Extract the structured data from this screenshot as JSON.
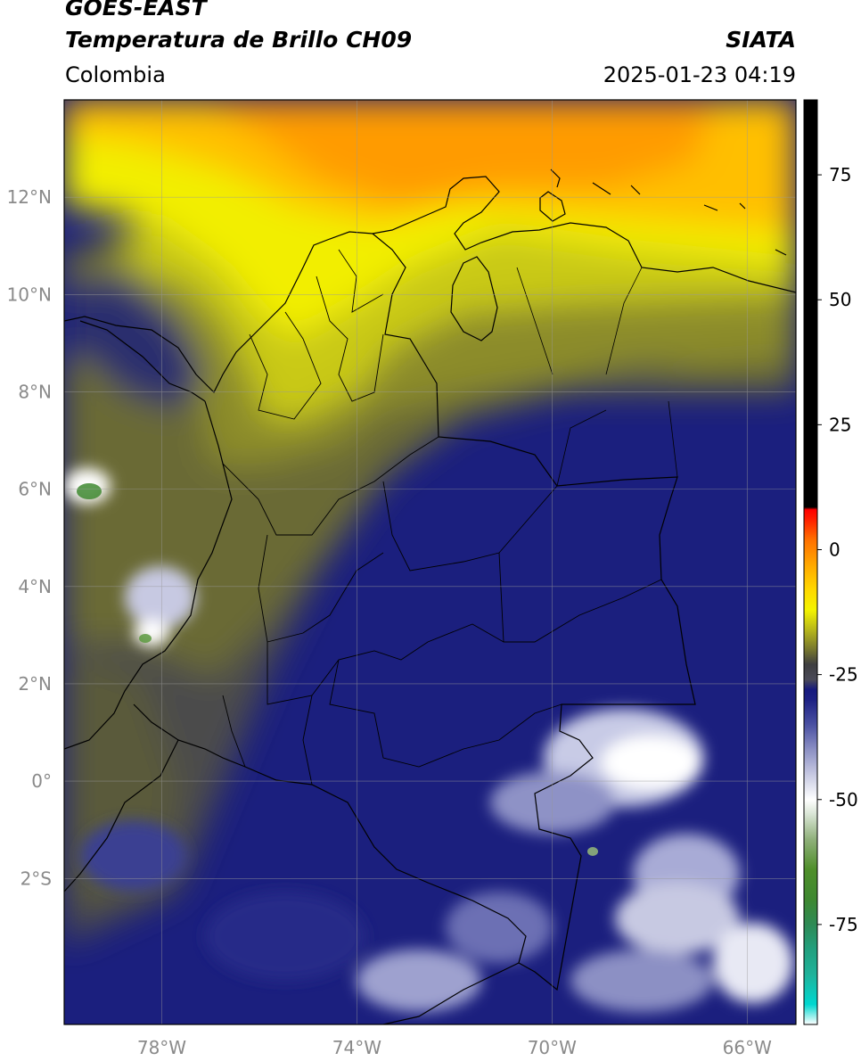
{
  "header": {
    "satellite": "GOES-EAST",
    "product": "Temperatura de Brillo CH09",
    "agency": "SIATA",
    "region": "Colombia",
    "timestamp": "2025-01-23 04:19"
  },
  "map": {
    "lon_range": [
      -80.0,
      -65.0
    ],
    "lat_range": [
      -5.0,
      14.0
    ],
    "lat_ticks": [
      {
        "value": 12,
        "label": "12°N"
      },
      {
        "value": 10,
        "label": "10°N"
      },
      {
        "value": 8,
        "label": "8°N"
      },
      {
        "value": 6,
        "label": "6°N"
      },
      {
        "value": 4,
        "label": "4°N"
      },
      {
        "value": 2,
        "label": "2°N"
      },
      {
        "value": 0,
        "label": "0°"
      },
      {
        "value": -2,
        "label": "2°S"
      }
    ],
    "lon_ticks": [
      {
        "value": -78,
        "label": "78°W"
      },
      {
        "value": -74,
        "label": "74°W"
      },
      {
        "value": -70,
        "label": "70°W"
      },
      {
        "value": -66,
        "label": "66°W"
      }
    ],
    "grid": true
  },
  "colorbar": {
    "range": [
      -95,
      90
    ],
    "ticks": [
      {
        "value": 75,
        "label": "75"
      },
      {
        "value": 50,
        "label": "50"
      },
      {
        "value": 25,
        "label": "25"
      },
      {
        "value": 0,
        "label": "0"
      },
      {
        "value": -25,
        "label": "-25"
      },
      {
        "value": -50,
        "label": "-50"
      },
      {
        "value": -75,
        "label": "-75"
      }
    ],
    "stops": [
      {
        "value": -95,
        "color": "#ffffff"
      },
      {
        "value": -91,
        "color": "#00d7d0"
      },
      {
        "value": -85,
        "color": "#1fb29a"
      },
      {
        "value": -80,
        "color": "#22a07e"
      },
      {
        "value": -75,
        "color": "#2e8a55"
      },
      {
        "value": -70,
        "color": "#3e8830"
      },
      {
        "value": -64,
        "color": "#4f8f2a"
      },
      {
        "value": -58,
        "color": "#8fb07a"
      },
      {
        "value": -53,
        "color": "#d8e4d4"
      },
      {
        "value": -50,
        "color": "#ffffff"
      },
      {
        "value": -45,
        "color": "#c7c9e2"
      },
      {
        "value": -40,
        "color": "#8c90c4"
      },
      {
        "value": -35,
        "color": "#4a50a2"
      },
      {
        "value": -30,
        "color": "#1d2184"
      },
      {
        "value": -28,
        "color": "#161a7e"
      },
      {
        "value": -26,
        "color": "#4a4a58"
      },
      {
        "value": -23,
        "color": "#3e3e40"
      },
      {
        "value": -20,
        "color": "#76762e"
      },
      {
        "value": -16,
        "color": "#b8b81a"
      },
      {
        "value": -12,
        "color": "#f4f400"
      },
      {
        "value": -8,
        "color": "#ffd800"
      },
      {
        "value": -3,
        "color": "#ffa800"
      },
      {
        "value": 2,
        "color": "#ff7000"
      },
      {
        "value": 6,
        "color": "#ff2000"
      },
      {
        "value": 8,
        "color": "#ff0000"
      },
      {
        "value": 8.5,
        "color": "#000000"
      },
      {
        "value": 90,
        "color": "#000000"
      }
    ]
  }
}
